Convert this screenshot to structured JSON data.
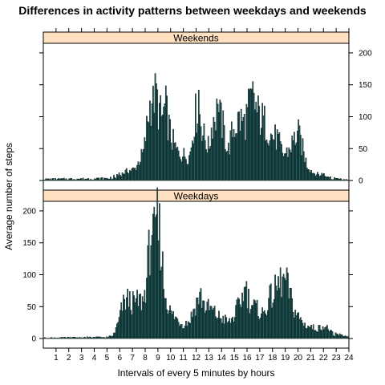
{
  "chart_data": {
    "type": "bar",
    "title": "Differences in activity patterns between weekdays and weekends",
    "xlabel": "Intervals of every 5 minutes by hours",
    "ylabel": "Average number of steps",
    "x_range": [
      0,
      24
    ],
    "x_ticks": [
      "1",
      "2",
      "3",
      "4",
      "5",
      "6",
      "7",
      "8",
      "9",
      "10",
      "11",
      "12",
      "13",
      "14",
      "15",
      "16",
      "17",
      "18",
      "19",
      "20",
      "21",
      "22",
      "23",
      "24"
    ],
    "y_ticks": [
      "0",
      "50",
      "100",
      "150",
      "200"
    ],
    "ylim": [
      -15,
      215
    ],
    "interval_minutes": 5,
    "bar_color": "#1f5c5c",
    "bar_edge_color": "#000000",
    "strip_color": "#ffe0c0",
    "panels": [
      {
        "name": "Weekends",
        "hourly_profile": [
          [
            0,
            2
          ],
          [
            5,
            3
          ],
          [
            5.8,
            6
          ],
          [
            6.5,
            14
          ],
          [
            7.2,
            18
          ],
          [
            7.9,
            45
          ],
          [
            8.3,
            110
          ],
          [
            8.6,
            140
          ],
          [
            8.9,
            125
          ],
          [
            9.3,
            95
          ],
          [
            9.6,
            115
          ],
          [
            10,
            70
          ],
          [
            10.5,
            45
          ],
          [
            11,
            40
          ],
          [
            11.5,
            38
          ],
          [
            11.9,
            100
          ],
          [
            12.2,
            115
          ],
          [
            12.6,
            70
          ],
          [
            13,
            50
          ],
          [
            13.3,
            95
          ],
          [
            13.7,
            110
          ],
          [
            14.1,
            85
          ],
          [
            14.5,
            45
          ],
          [
            14.9,
            80
          ],
          [
            15.4,
            95
          ],
          [
            15.8,
            90
          ],
          [
            16.2,
            115
          ],
          [
            16.5,
            130
          ],
          [
            16.8,
            105
          ],
          [
            17.2,
            95
          ],
          [
            17.6,
            85
          ],
          [
            17.9,
            70
          ],
          [
            18.4,
            65
          ],
          [
            18.8,
            40
          ],
          [
            19.2,
            45
          ],
          [
            19.6,
            60
          ],
          [
            20,
            75
          ],
          [
            20.3,
            55
          ],
          [
            20.7,
            25
          ],
          [
            21.2,
            12
          ],
          [
            21.8,
            8
          ],
          [
            22.5,
            4
          ],
          [
            23,
            3
          ],
          [
            23.5,
            2
          ],
          [
            24,
            1
          ]
        ],
        "peaks": [
          [
            8.9,
            152
          ],
          [
            8.6,
            148
          ],
          [
            16.5,
            137
          ],
          [
            12.2,
            142
          ],
          [
            13.7,
            120
          ],
          [
            15.4,
            108
          ]
        ]
      },
      {
        "name": "Weekdays",
        "hourly_profile": [
          [
            0,
            1
          ],
          [
            5,
            2
          ],
          [
            5.5,
            4
          ],
          [
            5.9,
            25
          ],
          [
            6.2,
            50
          ],
          [
            6.6,
            62
          ],
          [
            7,
            55
          ],
          [
            7.5,
            58
          ],
          [
            7.9,
            60
          ],
          [
            8.2,
            110
          ],
          [
            8.5,
            175
          ],
          [
            8.7,
            200
          ],
          [
            8.9,
            185
          ],
          [
            9.2,
            160
          ],
          [
            9.5,
            75
          ],
          [
            10,
            40
          ],
          [
            10.5,
            30
          ],
          [
            11,
            22
          ],
          [
            11.5,
            28
          ],
          [
            12,
            55
          ],
          [
            12.3,
            70
          ],
          [
            12.7,
            50
          ],
          [
            13.2,
            45
          ],
          [
            13.7,
            35
          ],
          [
            14.2,
            30
          ],
          [
            14.6,
            25
          ],
          [
            15,
            35
          ],
          [
            15.5,
            60
          ],
          [
            15.9,
            75
          ],
          [
            16.3,
            55
          ],
          [
            16.8,
            45
          ],
          [
            17.3,
            38
          ],
          [
            17.7,
            60
          ],
          [
            18.1,
            70
          ],
          [
            18.5,
            85
          ],
          [
            18.9,
            95
          ],
          [
            19.2,
            80
          ],
          [
            19.6,
            50
          ],
          [
            20,
            35
          ],
          [
            20.5,
            22
          ],
          [
            21,
            18
          ],
          [
            21.5,
            15
          ],
          [
            22,
            20
          ],
          [
            22.4,
            15
          ],
          [
            22.8,
            6
          ],
          [
            23.5,
            4
          ],
          [
            24,
            2
          ]
        ],
        "peaks": [
          [
            8.7,
            206
          ],
          [
            8.6,
            195
          ],
          [
            8.8,
            190
          ],
          [
            18.9,
            101
          ],
          [
            15.9,
            81
          ],
          [
            12.3,
            73
          ]
        ]
      }
    ]
  }
}
